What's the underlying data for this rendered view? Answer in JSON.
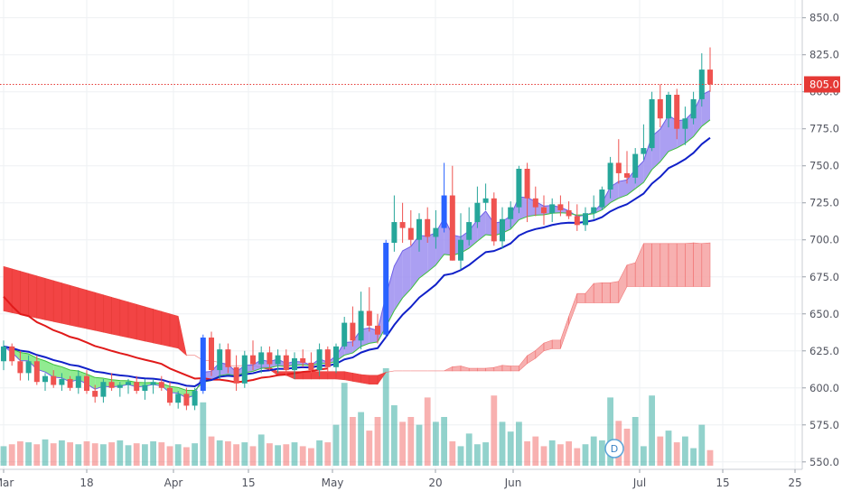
{
  "chart_data": {
    "type": "candlestick",
    "y_axis_side": "right",
    "ylim": [
      545,
      862
    ],
    "y_ticks": [
      550,
      575,
      600,
      625,
      650,
      675,
      700,
      725,
      750,
      775,
      800,
      825,
      850
    ],
    "x_tick_labels": [
      "Mar",
      "18",
      "Apr",
      "15",
      "May",
      "20",
      "Jun",
      "Jul",
      "15",
      "25"
    ],
    "last_price": 805.0,
    "last_price_label": "805.0",
    "event_marker": "D",
    "grid": true,
    "colors": {
      "up": "#26a69a",
      "down": "#ef5350",
      "up_bar_pattern": "#2962ff",
      "ma_red": "#e01a1a",
      "ma_blue": "#1020c8",
      "cloud_bear": "#f23b3b",
      "cloud_bull": "#f7a8a8",
      "ribbon_green": "#7ee87e",
      "ribbon_purple": "#9c8ef0",
      "price_line": "#e53935"
    },
    "candles": [
      [
        618,
        632,
        612,
        628
      ],
      [
        628,
        630,
        615,
        618
      ],
      [
        618,
        625,
        605,
        610
      ],
      [
        610,
        622,
        605,
        618
      ],
      [
        618,
        622,
        602,
        604
      ],
      [
        604,
        610,
        598,
        608
      ],
      [
        608,
        612,
        600,
        602
      ],
      [
        602,
        610,
        598,
        606
      ],
      [
        606,
        608,
        598,
        600
      ],
      [
        600,
        612,
        596,
        608
      ],
      [
        608,
        612,
        596,
        598
      ],
      [
        598,
        602,
        590,
        594
      ],
      [
        594,
        606,
        590,
        604
      ],
      [
        604,
        610,
        598,
        600
      ],
      [
        600,
        604,
        594,
        602
      ],
      [
        602,
        606,
        596,
        604
      ],
      [
        604,
        608,
        596,
        598
      ],
      [
        598,
        606,
        592,
        602
      ],
      [
        602,
        606,
        596,
        604
      ],
      [
        604,
        608,
        598,
        600
      ],
      [
        600,
        604,
        588,
        590
      ],
      [
        590,
        598,
        586,
        596
      ],
      [
        596,
        600,
        585,
        588
      ],
      [
        588,
        600,
        585,
        598
      ],
      [
        598,
        636,
        596,
        634
      ],
      [
        634,
        638,
        608,
        612
      ],
      [
        612,
        630,
        606,
        626
      ],
      [
        626,
        630,
        610,
        614
      ],
      [
        614,
        622,
        598,
        603
      ],
      [
        603,
        625,
        600,
        622
      ],
      [
        622,
        632,
        612,
        616
      ],
      [
        616,
        628,
        610,
        624
      ],
      [
        624,
        628,
        612,
        616
      ],
      [
        616,
        626,
        610,
        622
      ],
      [
        622,
        626,
        608,
        612
      ],
      [
        612,
        624,
        606,
        620
      ],
      [
        620,
        626,
        614,
        617
      ],
      [
        617,
        624,
        610,
        612
      ],
      [
        612,
        630,
        608,
        626
      ],
      [
        626,
        628,
        610,
        614
      ],
      [
        614,
        630,
        610,
        628
      ],
      [
        628,
        648,
        626,
        644
      ],
      [
        644,
        655,
        628,
        632
      ],
      [
        632,
        665,
        626,
        652
      ],
      [
        652,
        668,
        638,
        642
      ],
      [
        642,
        650,
        630,
        636
      ],
      [
        636,
        700,
        634,
        698
      ],
      [
        698,
        730,
        692,
        712
      ],
      [
        712,
        725,
        698,
        708
      ],
      [
        708,
        720,
        696,
        700
      ],
      [
        700,
        718,
        692,
        714
      ],
      [
        714,
        722,
        698,
        702
      ],
      [
        702,
        720,
        694,
        708
      ],
      [
        708,
        752,
        705,
        730
      ],
      [
        730,
        750,
        686,
        686
      ],
      [
        686,
        718,
        680,
        700
      ],
      [
        700,
        722,
        696,
        712
      ],
      [
        712,
        736,
        708,
        725
      ],
      [
        725,
        738,
        720,
        728
      ],
      [
        728,
        732,
        696,
        699
      ],
      [
        699,
        722,
        694,
        714
      ],
      [
        714,
        726,
        708,
        722
      ],
      [
        722,
        750,
        718,
        748
      ],
      [
        748,
        752,
        712,
        728
      ],
      [
        728,
        736,
        716,
        722
      ],
      [
        722,
        730,
        710,
        718
      ],
      [
        718,
        728,
        712,
        724
      ],
      [
        724,
        730,
        716,
        720
      ],
      [
        720,
        726,
        714,
        716
      ],
      [
        716,
        724,
        706,
        710
      ],
      [
        710,
        722,
        706,
        718
      ],
      [
        718,
        730,
        714,
        722
      ],
      [
        722,
        736,
        720,
        734
      ],
      [
        734,
        756,
        728,
        752
      ],
      [
        752,
        768,
        738,
        745
      ],
      [
        745,
        760,
        738,
        742
      ],
      [
        742,
        762,
        738,
        758
      ],
      [
        758,
        778,
        754,
        762
      ],
      [
        762,
        800,
        760,
        795
      ],
      [
        795,
        805,
        776,
        782
      ],
      [
        782,
        800,
        776,
        798
      ],
      [
        798,
        802,
        768,
        775
      ],
      [
        775,
        790,
        764,
        782
      ],
      [
        782,
        800,
        778,
        795
      ],
      [
        795,
        826,
        790,
        815
      ],
      [
        815,
        830,
        800,
        805
      ]
    ],
    "volume_fraction": [
      0.2,
      0.22,
      0.25,
      0.24,
      0.22,
      0.27,
      0.23,
      0.26,
      0.24,
      0.22,
      0.25,
      0.23,
      0.22,
      0.24,
      0.26,
      0.21,
      0.23,
      0.22,
      0.25,
      0.24,
      0.2,
      0.22,
      0.19,
      0.23,
      0.65,
      0.3,
      0.26,
      0.25,
      0.22,
      0.24,
      0.2,
      0.32,
      0.23,
      0.21,
      0.22,
      0.24,
      0.2,
      0.18,
      0.26,
      0.24,
      0.42,
      0.85,
      0.5,
      0.55,
      0.36,
      0.5,
      1.0,
      0.62,
      0.45,
      0.5,
      0.42,
      0.7,
      0.45,
      0.5,
      0.25,
      0.2,
      0.33,
      0.22,
      0.24,
      0.72,
      0.45,
      0.35,
      0.45,
      0.25,
      0.3,
      0.2,
      0.26,
      0.22,
      0.25,
      0.18,
      0.22,
      0.3,
      0.26,
      0.7,
      0.46,
      0.38,
      0.5,
      0.2,
      0.72,
      0.3,
      0.36,
      0.24,
      0.3,
      0.18,
      0.42,
      0.16
    ]
  }
}
